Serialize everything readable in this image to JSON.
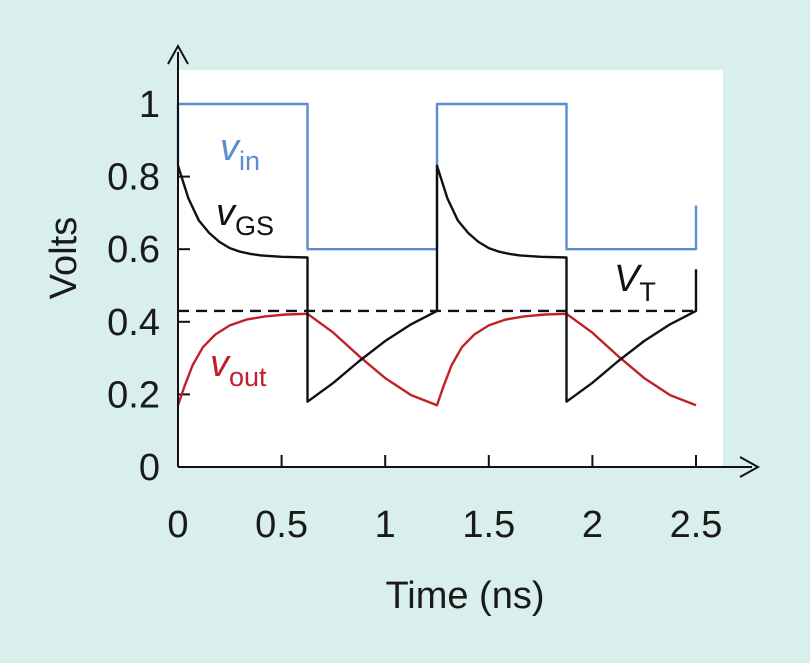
{
  "chart_data": {
    "type": "line",
    "xlabel": "Time (ns)",
    "ylabel": "Volts",
    "xlim": [
      0,
      2.5
    ],
    "ylim": [
      0,
      1
    ],
    "x_ticks": [
      "0",
      "0.5",
      "1",
      "1.5",
      "2",
      "2.5"
    ],
    "y_ticks": [
      "0",
      "0.2",
      "0.4",
      "0.6",
      "0.8",
      "1"
    ],
    "grid": false,
    "threshold": {
      "label_main": "V",
      "label_sub": "T",
      "value": 0.43
    },
    "series": [
      {
        "key": "vin",
        "label_main": "v",
        "label_sub": "in",
        "color": "#5b8bd0",
        "points": [
          [
            0,
            0.83
          ],
          [
            0,
            1
          ],
          [
            0.625,
            1
          ],
          [
            0.625,
            0.6
          ],
          [
            1.25,
            0.6
          ],
          [
            1.25,
            1
          ],
          [
            1.875,
            1
          ],
          [
            1.875,
            0.6
          ],
          [
            2.5,
            0.6
          ],
          [
            2.5,
            0.72
          ]
        ]
      },
      {
        "key": "vgs",
        "label_main": "v",
        "label_sub": "GS",
        "color": "#111111",
        "points": [
          [
            0,
            0.83
          ],
          [
            0.05,
            0.74
          ],
          [
            0.1,
            0.68
          ],
          [
            0.15,
            0.645
          ],
          [
            0.2,
            0.62
          ],
          [
            0.25,
            0.603
          ],
          [
            0.3,
            0.593
          ],
          [
            0.35,
            0.587
          ],
          [
            0.4,
            0.583
          ],
          [
            0.5,
            0.579
          ],
          [
            0.625,
            0.577
          ],
          [
            0.625,
            0.18
          ],
          [
            0.75,
            0.232
          ],
          [
            0.875,
            0.292
          ],
          [
            1.0,
            0.347
          ],
          [
            1.125,
            0.393
          ],
          [
            1.25,
            0.43
          ],
          [
            1.25,
            0.83
          ],
          [
            1.3,
            0.74
          ],
          [
            1.35,
            0.68
          ],
          [
            1.4,
            0.645
          ],
          [
            1.45,
            0.62
          ],
          [
            1.5,
            0.603
          ],
          [
            1.55,
            0.593
          ],
          [
            1.6,
            0.587
          ],
          [
            1.65,
            0.583
          ],
          [
            1.75,
            0.579
          ],
          [
            1.875,
            0.577
          ],
          [
            1.875,
            0.18
          ],
          [
            2.0,
            0.232
          ],
          [
            2.125,
            0.292
          ],
          [
            2.25,
            0.347
          ],
          [
            2.375,
            0.393
          ],
          [
            2.5,
            0.43
          ],
          [
            2.5,
            0.545
          ]
        ]
      },
      {
        "key": "vout",
        "label_main": "v",
        "label_sub": "out",
        "color": "#c0202a",
        "points": [
          [
            0,
            0.17
          ],
          [
            0.03,
            0.22
          ],
          [
            0.07,
            0.28
          ],
          [
            0.12,
            0.33
          ],
          [
            0.18,
            0.365
          ],
          [
            0.25,
            0.39
          ],
          [
            0.33,
            0.406
          ],
          [
            0.42,
            0.415
          ],
          [
            0.52,
            0.42
          ],
          [
            0.625,
            0.422
          ],
          [
            0.75,
            0.37
          ],
          [
            0.875,
            0.305
          ],
          [
            1.0,
            0.245
          ],
          [
            1.125,
            0.198
          ],
          [
            1.25,
            0.17
          ],
          [
            1.28,
            0.22
          ],
          [
            1.32,
            0.28
          ],
          [
            1.37,
            0.33
          ],
          [
            1.43,
            0.365
          ],
          [
            1.5,
            0.39
          ],
          [
            1.58,
            0.406
          ],
          [
            1.67,
            0.415
          ],
          [
            1.77,
            0.42
          ],
          [
            1.875,
            0.422
          ],
          [
            2.0,
            0.37
          ],
          [
            2.125,
            0.305
          ],
          [
            2.25,
            0.245
          ],
          [
            2.375,
            0.198
          ],
          [
            2.5,
            0.17
          ]
        ]
      }
    ]
  }
}
